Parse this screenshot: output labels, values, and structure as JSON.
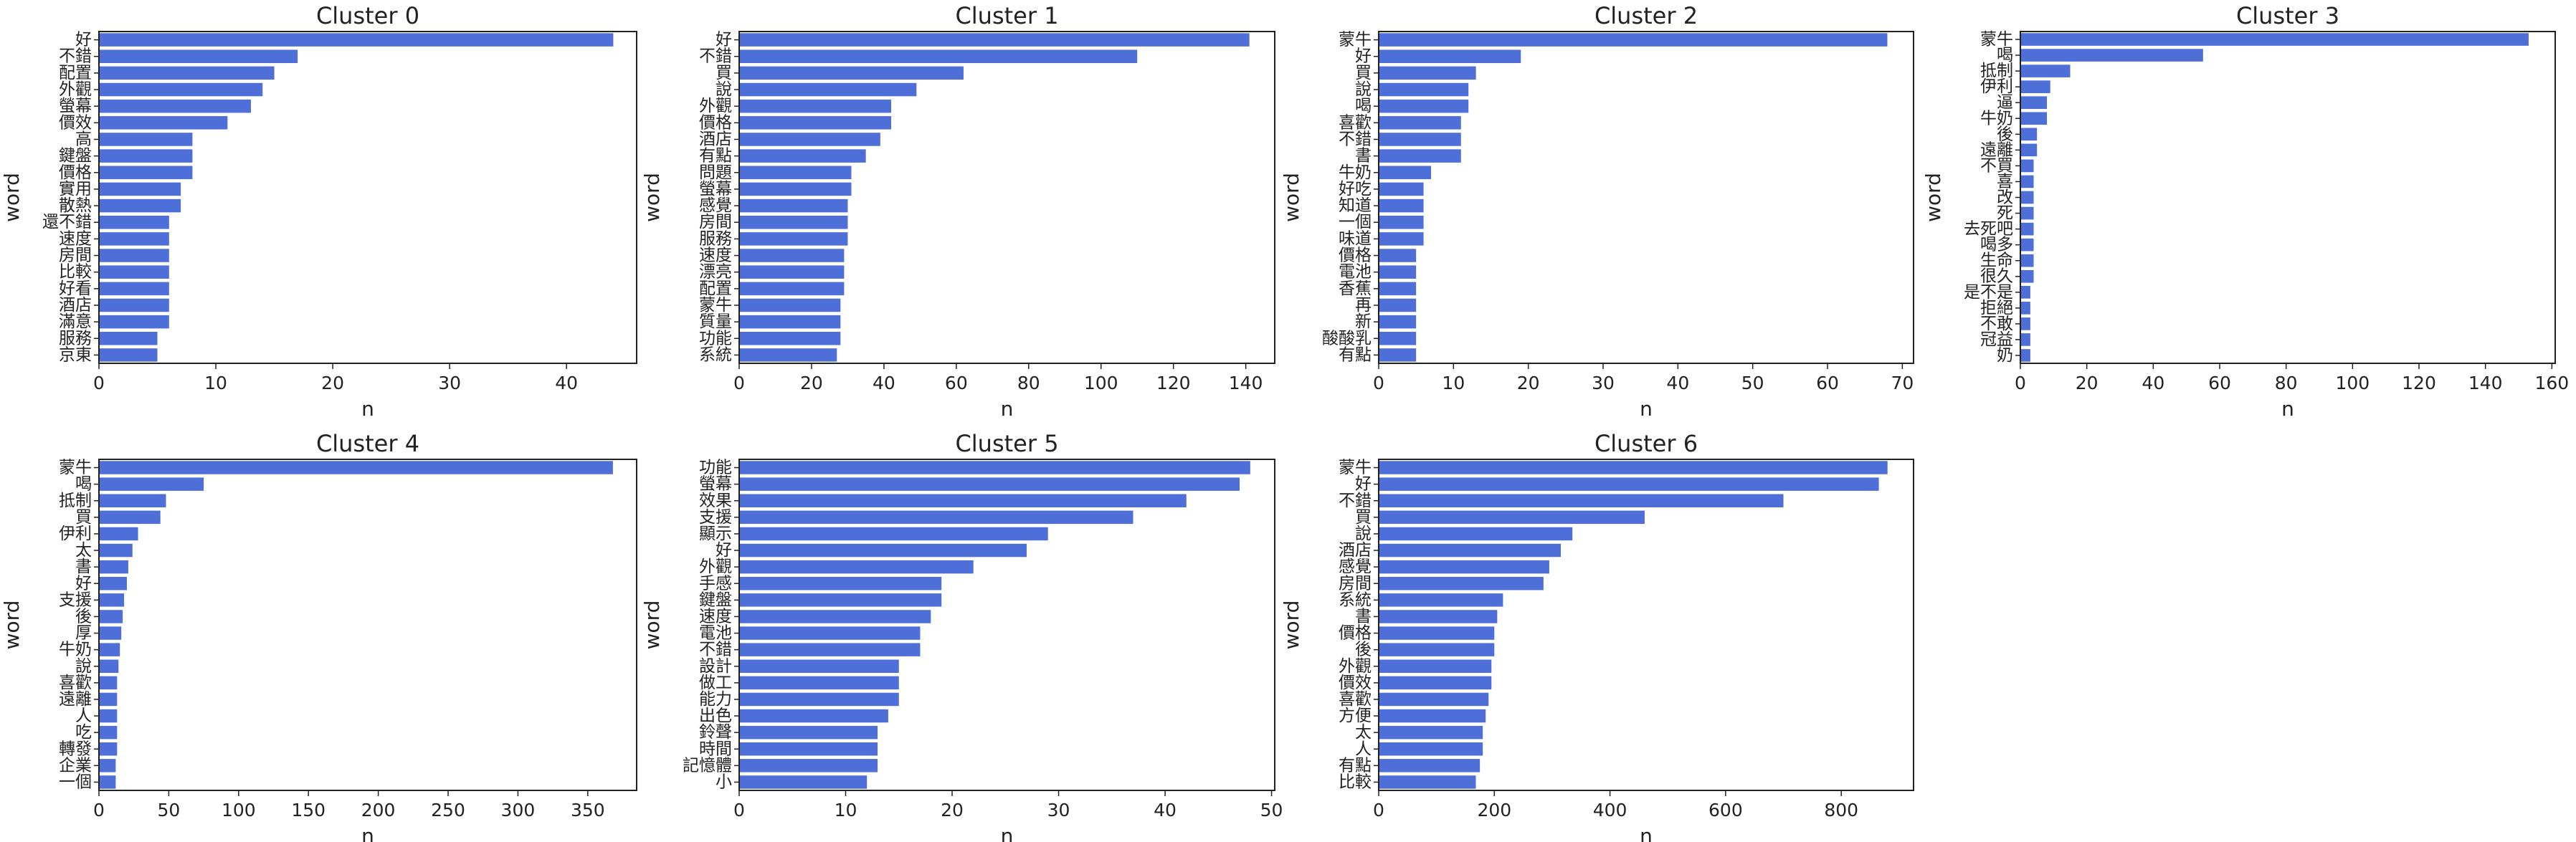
{
  "colors": {
    "bar": "#4f6fd8",
    "axis": "#222222",
    "background": "#ffffff"
  },
  "chart_data": [
    {
      "type": "bar",
      "orientation": "horizontal",
      "title": "Cluster 0",
      "xlabel": "n",
      "ylabel": "word",
      "xlim": [
        0,
        46
      ],
      "xticks": [
        0,
        10,
        20,
        30,
        40
      ],
      "categories": [
        "好",
        "不錯",
        "配置",
        "外觀",
        "螢幕",
        "價效",
        "高",
        "鍵盤",
        "價格",
        "實用",
        "散熱",
        "還不錯",
        "速度",
        "房間",
        "比較",
        "好看",
        "酒店",
        "滿意",
        "服務",
        "京東"
      ],
      "values": [
        44,
        17,
        15,
        14,
        13,
        11,
        8,
        8,
        8,
        7,
        7,
        6,
        6,
        6,
        6,
        6,
        6,
        6,
        5,
        5
      ]
    },
    {
      "type": "bar",
      "orientation": "horizontal",
      "title": "Cluster 1",
      "xlabel": "n",
      "ylabel": "word",
      "xlim": [
        0,
        148
      ],
      "xticks": [
        0,
        20,
        40,
        60,
        80,
        100,
        120,
        140
      ],
      "categories": [
        "好",
        "不錯",
        "買",
        "說",
        "外觀",
        "價格",
        "酒店",
        "有點",
        "問題",
        "螢幕",
        "感覺",
        "房間",
        "服務",
        "速度",
        "漂亮",
        "配置",
        "蒙牛",
        "質量",
        "功能",
        "系統"
      ],
      "values": [
        141,
        110,
        62,
        49,
        42,
        42,
        39,
        35,
        31,
        31,
        30,
        30,
        30,
        29,
        29,
        29,
        28,
        28,
        28,
        27
      ]
    },
    {
      "type": "bar",
      "orientation": "horizontal",
      "title": "Cluster 2",
      "xlabel": "n",
      "ylabel": "word",
      "xlim": [
        0,
        71.5
      ],
      "xticks": [
        0,
        10,
        20,
        30,
        40,
        50,
        60,
        70
      ],
      "categories": [
        "蒙牛",
        "好",
        "買",
        "說",
        "喝",
        "喜歡",
        "不錯",
        "書",
        "牛奶",
        "好吃",
        "知道",
        "一個",
        "味道",
        "價格",
        "電池",
        "香蕉",
        "再",
        "新",
        "酸酸乳",
        "有點"
      ],
      "values": [
        68,
        19,
        13,
        12,
        12,
        11,
        11,
        11,
        7,
        6,
        6,
        6,
        6,
        5,
        5,
        5,
        5,
        5,
        5,
        5
      ]
    },
    {
      "type": "bar",
      "orientation": "horizontal",
      "title": "Cluster 3",
      "xlabel": "n",
      "ylabel": "word",
      "xlim": [
        0,
        161
      ],
      "xticks": [
        0,
        20,
        40,
        60,
        80,
        100,
        120,
        140,
        160
      ],
      "categories": [
        "蒙牛",
        "喝",
        "抵制",
        "伊利",
        "逼",
        "牛奶",
        "後",
        "遠離",
        "不買",
        "喜",
        "改",
        "死",
        "去死吧",
        "喝多",
        "生命",
        "很久",
        "是不是",
        "拒絕",
        "不敢",
        "冠益",
        "奶"
      ],
      "values": [
        153,
        55,
        15,
        9,
        8,
        8,
        5,
        5,
        4,
        4,
        4,
        4,
        4,
        4,
        4,
        4,
        3,
        3,
        3,
        3,
        3
      ]
    },
    {
      "type": "bar",
      "orientation": "horizontal",
      "title": "Cluster 4",
      "xlabel": "n",
      "ylabel": "word",
      "xlim": [
        0,
        385
      ],
      "xticks": [
        0,
        50,
        100,
        150,
        200,
        250,
        300,
        350
      ],
      "categories": [
        "蒙牛",
        "喝",
        "抵制",
        "買",
        "伊利",
        "太",
        "書",
        "好",
        "支援",
        "後",
        "厚",
        "牛奶",
        "說",
        "喜歡",
        "遠離",
        "人",
        "吃",
        "轉發",
        "企業",
        "一個"
      ],
      "values": [
        368,
        75,
        48,
        44,
        28,
        24,
        21,
        20,
        18,
        17,
        16,
        15,
        14,
        13,
        13,
        13,
        13,
        13,
        12,
        12
      ]
    },
    {
      "type": "bar",
      "orientation": "horizontal",
      "title": "Cluster 5",
      "xlabel": "n",
      "ylabel": "word",
      "xlim": [
        0,
        50.3
      ],
      "xticks": [
        0,
        10,
        20,
        30,
        40,
        50
      ],
      "categories": [
        "功能",
        "螢幕",
        "效果",
        "支援",
        "顯示",
        "好",
        "外觀",
        "手感",
        "鍵盤",
        "速度",
        "電池",
        "不錯",
        "設計",
        "做工",
        "能力",
        "出色",
        "鈴聲",
        "時間",
        "記憶體",
        "小"
      ],
      "values": [
        48,
        47,
        42,
        37,
        29,
        27,
        22,
        19,
        19,
        18,
        17,
        17,
        15,
        15,
        15,
        14,
        13,
        13,
        13,
        12
      ]
    },
    {
      "type": "bar",
      "orientation": "horizontal",
      "title": "Cluster 6",
      "xlabel": "n",
      "ylabel": "word",
      "xlim": [
        0,
        925
      ],
      "xticks": [
        0,
        200,
        400,
        600,
        800
      ],
      "categories": [
        "蒙牛",
        "好",
        "不錯",
        "買",
        "說",
        "酒店",
        "感覺",
        "房間",
        "系統",
        "書",
        "價格",
        "後",
        "外觀",
        "價效",
        "喜歡",
        "方便",
        "太",
        "人",
        "有點",
        "比較"
      ],
      "values": [
        880,
        865,
        700,
        460,
        335,
        315,
        295,
        285,
        215,
        205,
        200,
        200,
        195,
        195,
        190,
        185,
        180,
        180,
        175,
        168
      ]
    }
  ]
}
